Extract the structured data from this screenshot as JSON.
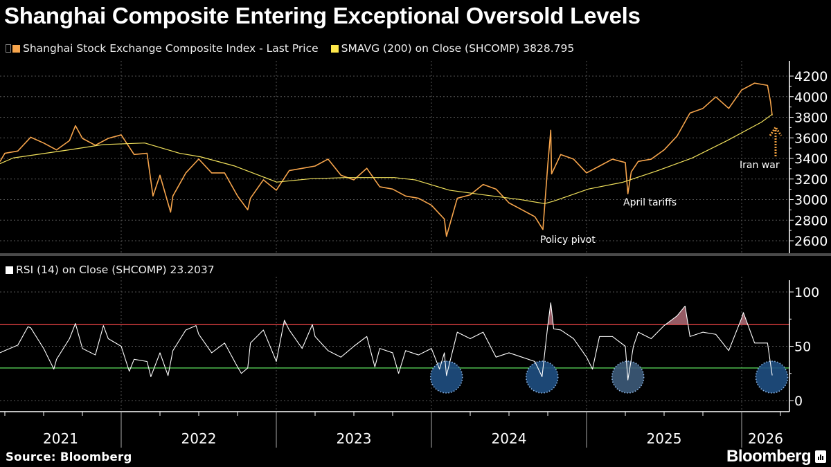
{
  "title": "Shanghai Composite Entering Exceptional Oversold Levels",
  "legend": {
    "price": "Shanghai Stock Exchange Composite Index - Last Price",
    "sma": "SMAVG (200)  on Close (SHCOMP) 3828.795",
    "rsi": "RSI (14)  on Close (SHCOMP) 23.2037"
  },
  "colors": {
    "background": "#000000",
    "price": "#f7a54c",
    "sma": "#f2e25c",
    "rsi": "#ffffff",
    "overbought": "#d43a3a",
    "oversold": "#4fbf4f",
    "highlight": "#1f4f82"
  },
  "x_axis": {
    "labels": [
      "2021",
      "2022",
      "2023",
      "2024",
      "2025",
      "2026"
    ]
  },
  "annotations": {
    "policy_pivot": "Policy pivot",
    "april_tariffs": "April tariffs",
    "iran_war": "Iran war"
  },
  "footer": {
    "source": "Source: Bloomberg",
    "logo": "Bloomberg"
  },
  "chart_data": [
    {
      "type": "line",
      "panel": "price",
      "ylim": [
        2550,
        4300
      ],
      "yticks": [
        2600,
        2800,
        3000,
        3200,
        3400,
        3600,
        3800,
        4000,
        4200
      ],
      "ytick_labels": [
        "2600",
        "2800",
        "3000",
        "3200",
        "3400",
        "3600",
        "3800",
        "4000",
        "4200"
      ],
      "grid": true,
      "axis_side": "right",
      "series": [
        {
          "name": "Shanghai Stock Exchange Composite Index - Last Price",
          "color": "#f7a54c",
          "points": [
            [
              "2021-03-20",
              3370
            ],
            [
              "2021-04-01",
              3450
            ],
            [
              "2021-05-01",
              3472
            ],
            [
              "2021-06-01",
              3606
            ],
            [
              "2021-07-01",
              3550
            ],
            [
              "2021-08-01",
              3483
            ],
            [
              "2021-09-01",
              3573
            ],
            [
              "2021-09-15",
              3718
            ],
            [
              "2021-10-01",
              3595
            ],
            [
              "2021-11-01",
              3528
            ],
            [
              "2021-12-01",
              3595
            ],
            [
              "2022-01-01",
              3629
            ],
            [
              "2022-02-01",
              3438
            ],
            [
              "2022-03-01",
              3450
            ],
            [
              "2022-03-15",
              3035
            ],
            [
              "2022-04-01",
              3237
            ],
            [
              "2022-04-26",
              2878
            ],
            [
              "2022-05-01",
              3035
            ],
            [
              "2022-06-01",
              3259
            ],
            [
              "2022-07-01",
              3394
            ],
            [
              "2022-08-01",
              3259
            ],
            [
              "2022-09-01",
              3259
            ],
            [
              "2022-10-01",
              3035
            ],
            [
              "2022-10-25",
              2901
            ],
            [
              "2022-11-01",
              3013
            ],
            [
              "2022-12-01",
              3192
            ],
            [
              "2023-01-01",
              3091
            ],
            [
              "2023-02-01",
              3282
            ],
            [
              "2023-03-01",
              3304
            ],
            [
              "2023-04-01",
              3326
            ],
            [
              "2023-05-01",
              3394
            ],
            [
              "2023-06-01",
              3237
            ],
            [
              "2023-07-01",
              3192
            ],
            [
              "2023-08-01",
              3304
            ],
            [
              "2023-09-01",
              3125
            ],
            [
              "2023-10-01",
              3102
            ],
            [
              "2023-11-01",
              3035
            ],
            [
              "2023-12-01",
              3013
            ],
            [
              "2024-01-01",
              2946
            ],
            [
              "2024-02-01",
              2811
            ],
            [
              "2024-02-06",
              2643
            ],
            [
              "2024-03-01",
              3013
            ],
            [
              "2024-04-01",
              3046
            ],
            [
              "2024-05-01",
              3147
            ],
            [
              "2024-06-01",
              3102
            ],
            [
              "2024-07-01",
              2968
            ],
            [
              "2024-08-01",
              2901
            ],
            [
              "2024-09-01",
              2834
            ],
            [
              "2024-09-20",
              2710
            ],
            [
              "2024-10-01",
              3336
            ],
            [
              "2024-10-08",
              3674
            ],
            [
              "2024-10-10",
              3250
            ],
            [
              "2024-11-01",
              3438
            ],
            [
              "2024-12-01",
              3393
            ],
            [
              "2025-01-01",
              3259
            ],
            [
              "2025-02-01",
              3326
            ],
            [
              "2025-03-01",
              3393
            ],
            [
              "2025-04-01",
              3360
            ],
            [
              "2025-04-07",
              3057
            ],
            [
              "2025-04-15",
              3270
            ],
            [
              "2025-05-01",
              3371
            ],
            [
              "2025-06-01",
              3393
            ],
            [
              "2025-07-01",
              3483
            ],
            [
              "2025-08-01",
              3617
            ],
            [
              "2025-09-01",
              3841
            ],
            [
              "2025-10-01",
              3886
            ],
            [
              "2025-11-01",
              3998
            ],
            [
              "2025-12-01",
              3886
            ],
            [
              "2026-01-01",
              4065
            ],
            [
              "2026-02-01",
              4132
            ],
            [
              "2026-03-01",
              4110
            ],
            [
              "2026-03-08",
              3953
            ],
            [
              "2026-03-12",
              3819
            ]
          ]
        },
        {
          "name": "SMAVG (200)  on Close (SHCOMP)",
          "color": "#f2e25c",
          "points": [
            [
              "2021-03-20",
              3349
            ],
            [
              "2021-04-21",
              3405
            ],
            [
              "2021-08-30",
              3483
            ],
            [
              "2021-11-20",
              3535
            ],
            [
              "2022-02-26",
              3550
            ],
            [
              "2022-05-17",
              3450
            ],
            [
              "2022-07-05",
              3416
            ],
            [
              "2022-09-25",
              3326
            ],
            [
              "2023-01-02",
              3170
            ],
            [
              "2023-03-22",
              3203
            ],
            [
              "2023-06-12",
              3214
            ],
            [
              "2023-10-05",
              3214
            ],
            [
              "2023-11-23",
              3192
            ],
            [
              "2024-02-13",
              3091
            ],
            [
              "2024-05-03",
              3046
            ],
            [
              "2024-07-25",
              3002
            ],
            [
              "2024-09-24",
              2961
            ],
            [
              "2024-10-15",
              2985
            ],
            [
              "2025-01-05",
              3102
            ],
            [
              "2025-03-26",
              3169
            ],
            [
              "2025-06-16",
              3281
            ],
            [
              "2025-09-06",
              3404
            ],
            [
              "2025-11-27",
              3572
            ],
            [
              "2026-02-17",
              3752
            ],
            [
              "2026-03-12",
              3829
            ]
          ]
        }
      ],
      "annotations": [
        {
          "text": "Policy pivot",
          "date": "2024-09-24"
        },
        {
          "text": "April tariffs",
          "date": "2025-04-07"
        },
        {
          "text": "Iran war",
          "date": "2026-03-10",
          "arrow": "up"
        }
      ]
    },
    {
      "type": "line",
      "panel": "rsi",
      "ylim": [
        -8,
        108
      ],
      "yticks": [
        0,
        50,
        100
      ],
      "ytick_labels": [
        "0",
        "50",
        "100"
      ],
      "grid": true,
      "axis_side": "right",
      "reference_lines": [
        {
          "value": 70,
          "color": "#d43a3a"
        },
        {
          "value": 30,
          "color": "#4fbf4f"
        }
      ],
      "series": [
        {
          "name": "RSI (14)  on Close (SHCOMP)",
          "color": "#ffffff",
          "points": [
            [
              "2021-03-20",
              44
            ],
            [
              "2021-04-01",
              46
            ],
            [
              "2021-05-01",
              51
            ],
            [
              "2021-05-25",
              68
            ],
            [
              "2021-06-01",
              67
            ],
            [
              "2021-07-01",
              48
            ],
            [
              "2021-07-25",
              29
            ],
            [
              "2021-08-01",
              38
            ],
            [
              "2021-09-01",
              57
            ],
            [
              "2021-09-15",
              71
            ],
            [
              "2021-10-01",
              48
            ],
            [
              "2021-11-01",
              42
            ],
            [
              "2021-11-20",
              69
            ],
            [
              "2021-12-01",
              57
            ],
            [
              "2022-01-01",
              50
            ],
            [
              "2022-01-20",
              27
            ],
            [
              "2022-02-01",
              38
            ],
            [
              "2022-03-01",
              36
            ],
            [
              "2022-03-10",
              22
            ],
            [
              "2022-04-01",
              44
            ],
            [
              "2022-04-20",
              23
            ],
            [
              "2022-05-01",
              46
            ],
            [
              "2022-06-01",
              65
            ],
            [
              "2022-06-25",
              69
            ],
            [
              "2022-07-01",
              61
            ],
            [
              "2022-08-01",
              44
            ],
            [
              "2022-09-01",
              53
            ],
            [
              "2022-10-01",
              31
            ],
            [
              "2022-10-10",
              25
            ],
            [
              "2022-10-25",
              30
            ],
            [
              "2022-11-01",
              53
            ],
            [
              "2022-12-01",
              65
            ],
            [
              "2023-01-01",
              36
            ],
            [
              "2023-01-20",
              74
            ],
            [
              "2023-02-01",
              65
            ],
            [
              "2023-03-01",
              48
            ],
            [
              "2023-03-25",
              70
            ],
            [
              "2023-04-01",
              59
            ],
            [
              "2023-05-01",
              46
            ],
            [
              "2023-06-01",
              40
            ],
            [
              "2023-07-01",
              50
            ],
            [
              "2023-08-01",
              59
            ],
            [
              "2023-08-20",
              31
            ],
            [
              "2023-09-01",
              48
            ],
            [
              "2023-10-01",
              44
            ],
            [
              "2023-10-15",
              25
            ],
            [
              "2023-11-01",
              46
            ],
            [
              "2023-12-01",
              42
            ],
            [
              "2024-01-01",
              48
            ],
            [
              "2024-01-20",
              29
            ],
            [
              "2024-02-01",
              44
            ],
            [
              "2024-02-06",
              23
            ],
            [
              "2024-03-01",
              63
            ],
            [
              "2024-04-01",
              57
            ],
            [
              "2024-05-01",
              63
            ],
            [
              "2024-06-01",
              40
            ],
            [
              "2024-07-01",
              44
            ],
            [
              "2024-08-01",
              40
            ],
            [
              "2024-09-01",
              36
            ],
            [
              "2024-09-18",
              22
            ],
            [
              "2024-10-01",
              69
            ],
            [
              "2024-10-08",
              90
            ],
            [
              "2024-10-15",
              66
            ],
            [
              "2024-11-01",
              65
            ],
            [
              "2024-12-01",
              57
            ],
            [
              "2025-01-01",
              40
            ],
            [
              "2025-01-15",
              29
            ],
            [
              "2025-02-01",
              59
            ],
            [
              "2025-03-01",
              59
            ],
            [
              "2025-04-01",
              50
            ],
            [
              "2025-04-07",
              19
            ],
            [
              "2025-04-20",
              50
            ],
            [
              "2025-05-01",
              63
            ],
            [
              "2025-06-01",
              57
            ],
            [
              "2025-07-01",
              69
            ],
            [
              "2025-08-01",
              78
            ],
            [
              "2025-08-20",
              87
            ],
            [
              "2025-09-01",
              59
            ],
            [
              "2025-10-01",
              63
            ],
            [
              "2025-11-01",
              61
            ],
            [
              "2025-12-01",
              46
            ],
            [
              "2026-01-01",
              76
            ],
            [
              "2026-01-05",
              81
            ],
            [
              "2026-02-01",
              53
            ],
            [
              "2026-03-01",
              53
            ],
            [
              "2026-03-12",
              23.2
            ]
          ]
        }
      ],
      "oversold_highlights": [
        "2024-02-06",
        "2024-09-18",
        "2025-04-07",
        "2026-03-11"
      ]
    }
  ]
}
